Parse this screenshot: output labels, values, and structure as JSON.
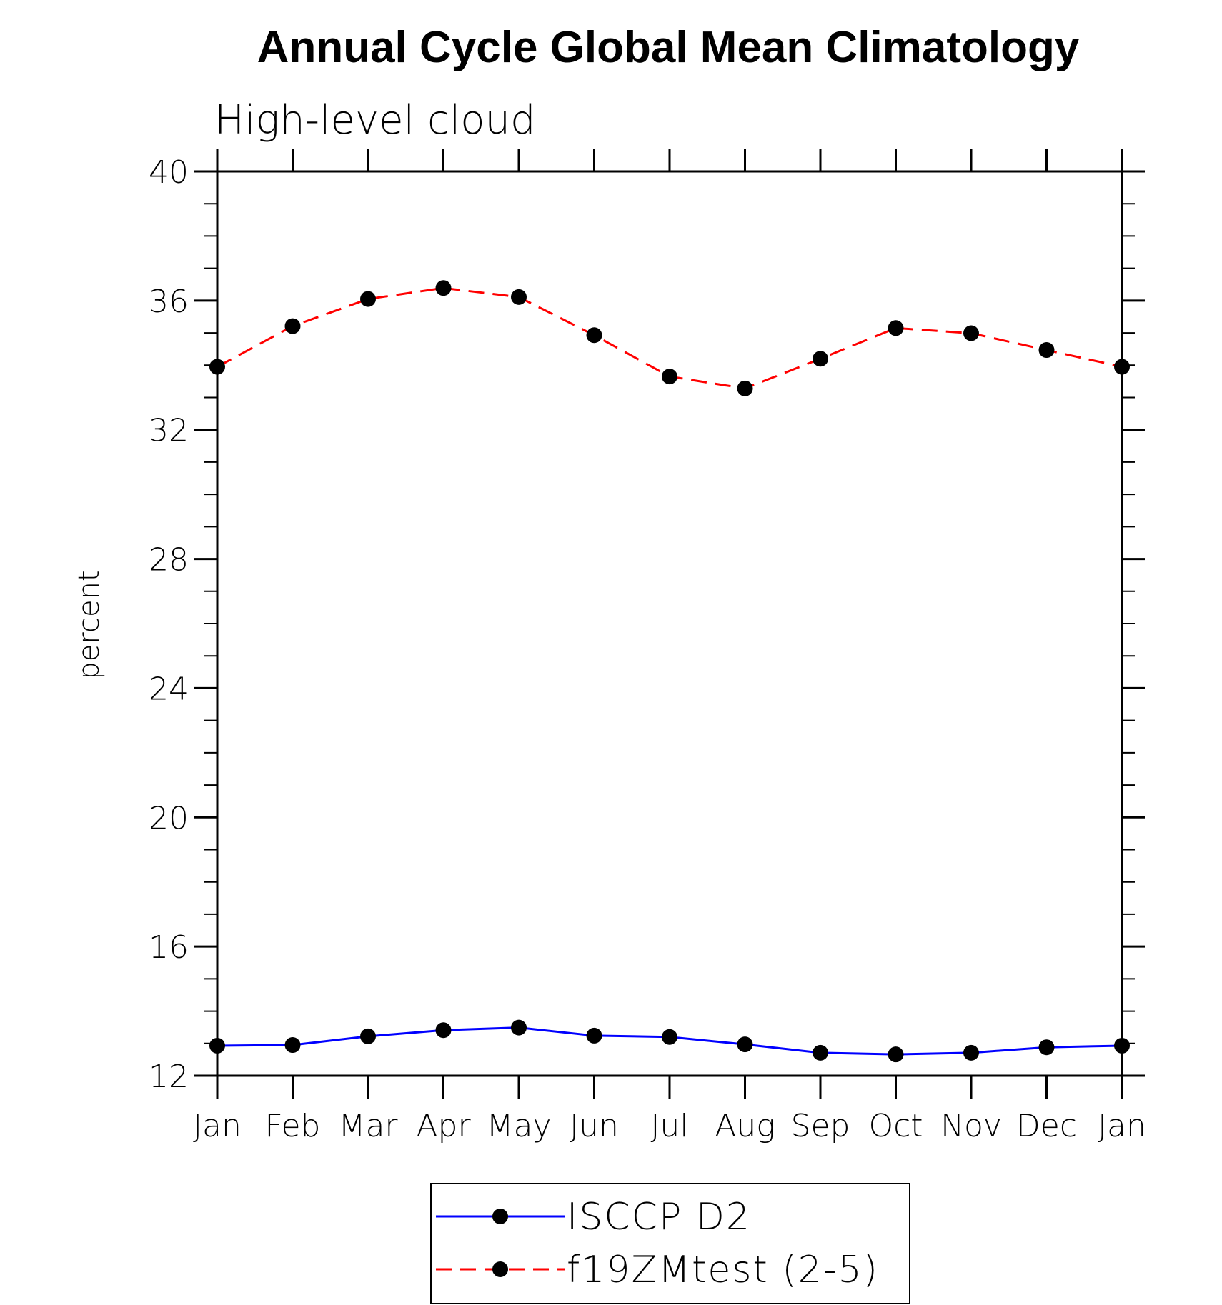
{
  "chart_data": {
    "type": "line",
    "title": "Annual Cycle Global Mean Climatology",
    "subtitle": "High-level cloud",
    "xlabel": "",
    "ylabel": "percent",
    "categories": [
      "Jan",
      "Feb",
      "Mar",
      "Apr",
      "May",
      "Jun",
      "Jul",
      "Aug",
      "Sep",
      "Oct",
      "Nov",
      "Dec",
      "Jan"
    ],
    "ylim": [
      12,
      40
    ],
    "yticks": [
      12,
      16,
      20,
      24,
      28,
      32,
      36,
      40
    ],
    "grid": false,
    "legend_position": "bottom",
    "series": [
      {
        "name": "ISCCP D2",
        "color": "#0000ff",
        "dash": "solid",
        "marker": "filled-circle",
        "values": [
          12.93,
          12.95,
          13.22,
          13.41,
          13.49,
          13.24,
          13.2,
          12.97,
          12.71,
          12.66,
          12.71,
          12.88,
          12.93
        ]
      },
      {
        "name": "f19ZMtest (2-5)",
        "color": "#ff0000",
        "dash": "dashed",
        "marker": "filled-circle",
        "values": [
          33.95,
          35.21,
          36.05,
          36.39,
          36.11,
          34.93,
          33.65,
          33.28,
          34.2,
          35.15,
          34.99,
          34.47,
          33.95
        ]
      }
    ]
  }
}
